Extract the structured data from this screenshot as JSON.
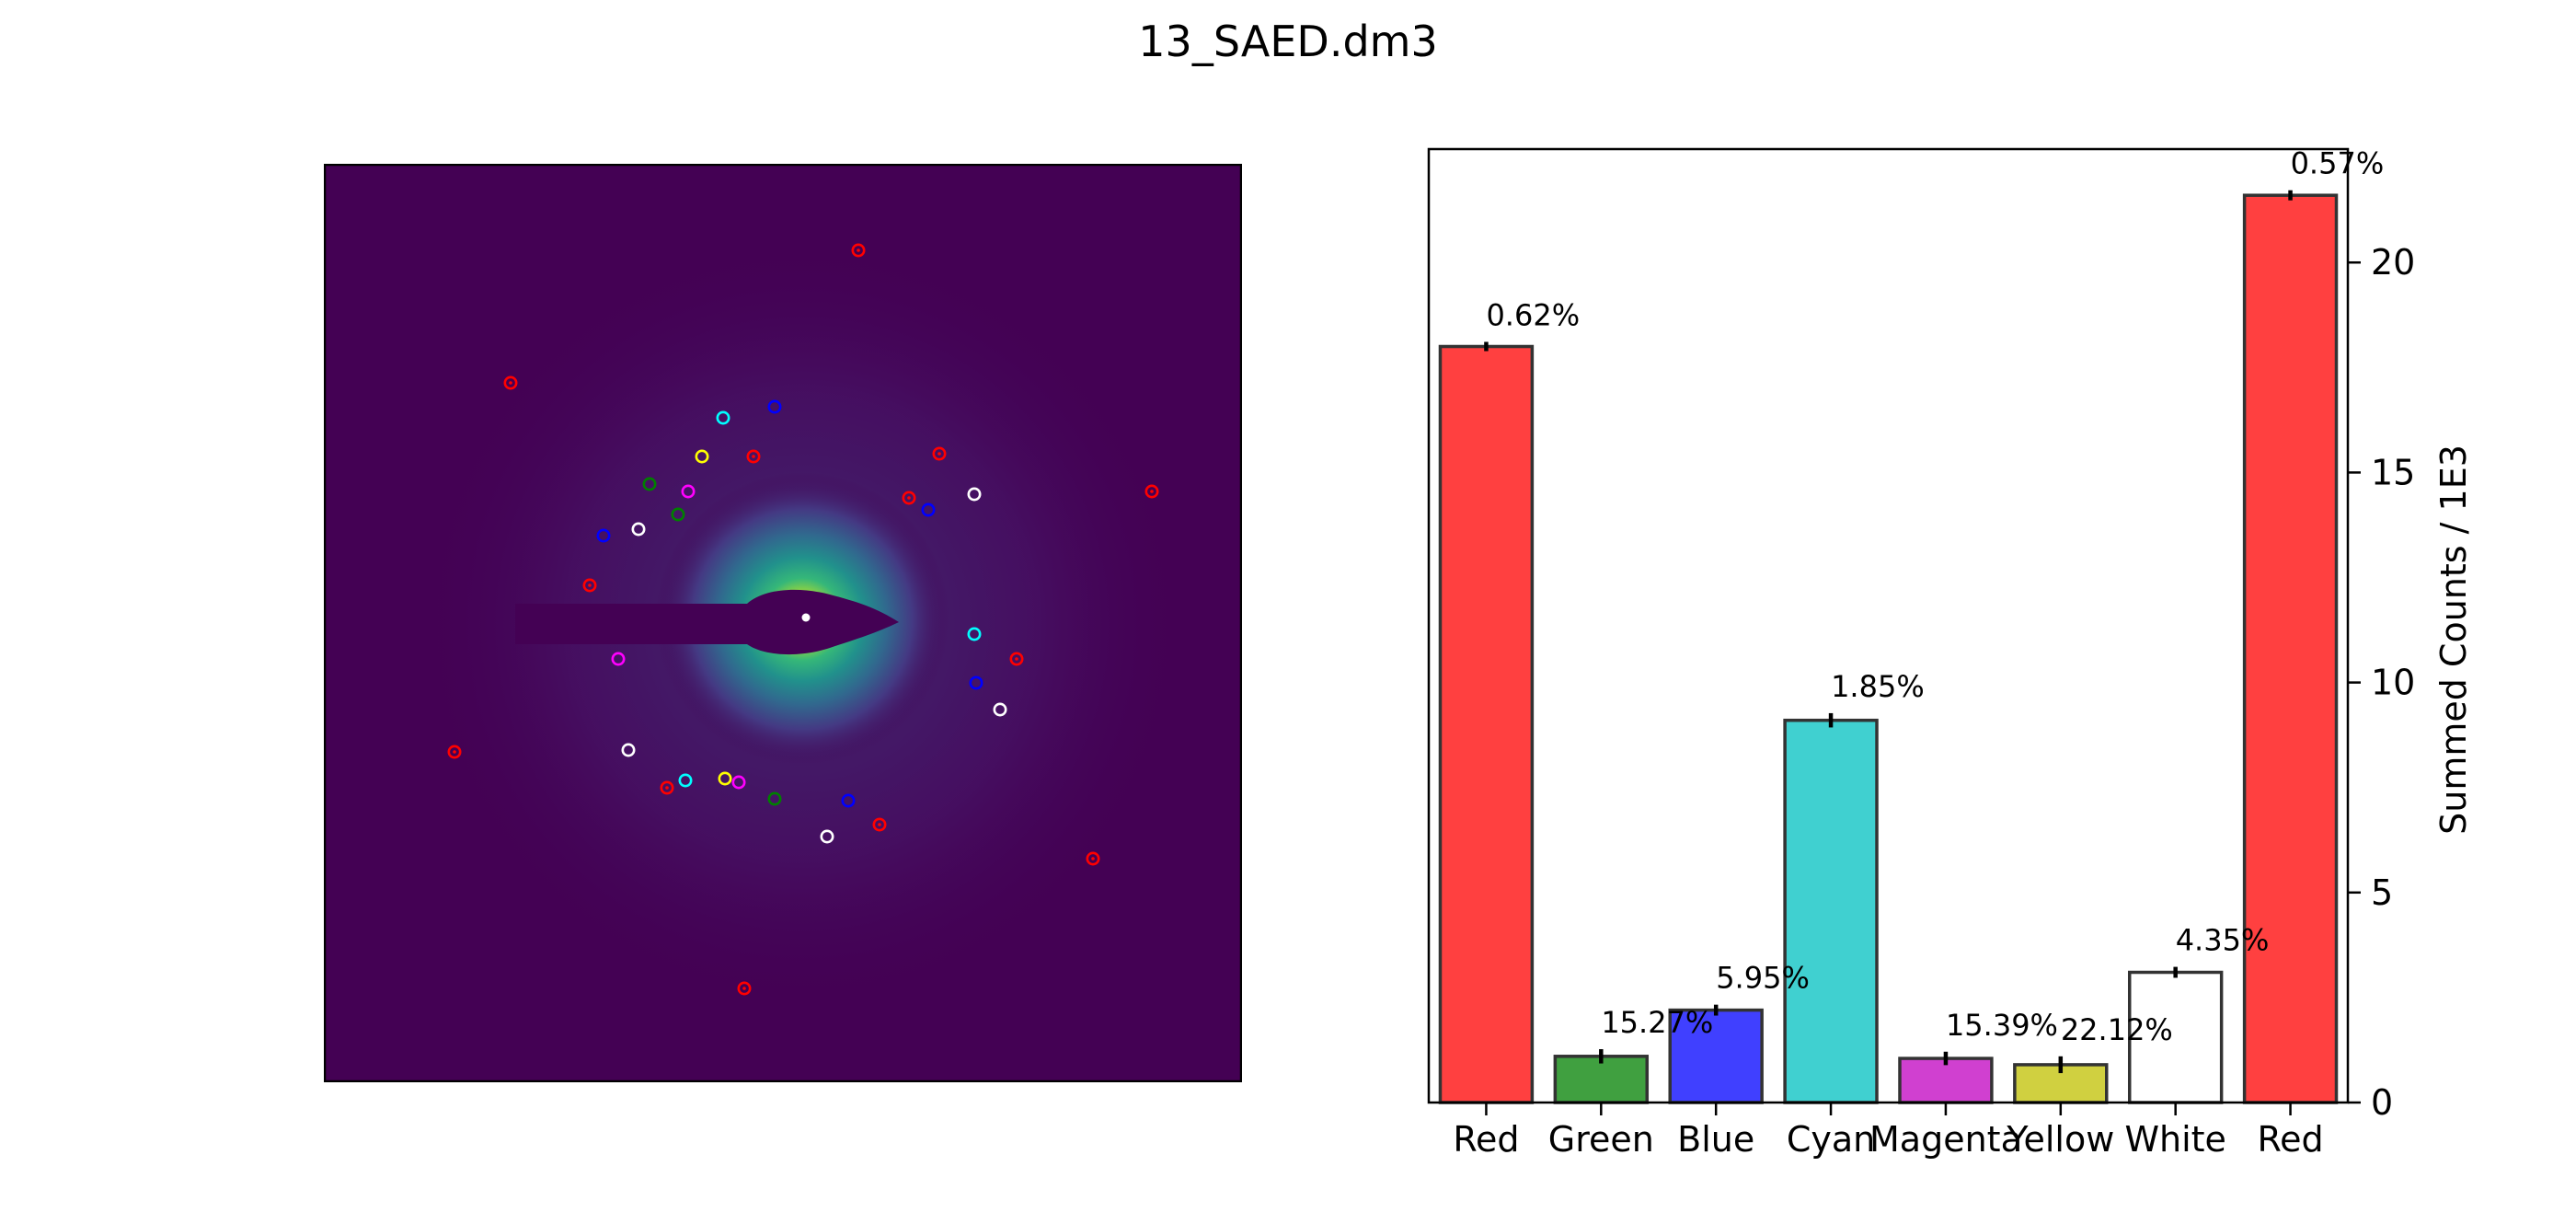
{
  "figure_title": "13_SAED.dm3",
  "image_panel": {
    "background_color": "#440154",
    "direct_beam_color": "#fde725",
    "spot_colors": [
      "red",
      "green",
      "blue",
      "cyan",
      "magenta",
      "yellow",
      "white"
    ]
  },
  "chart_data": {
    "type": "bar",
    "categories": [
      "Red",
      "Green",
      "Blue",
      "Cyan",
      "Magenta",
      "Yellow",
      "White",
      "Red"
    ],
    "values": [
      18.0,
      1.1,
      2.2,
      9.1,
      1.05,
      0.9,
      3.1,
      21.6
    ],
    "errors": [
      0.11,
      0.17,
      0.13,
      0.17,
      0.16,
      0.2,
      0.13,
      0.12
    ],
    "annotations": [
      "0.62%",
      "15.27%",
      "5.95%",
      "1.85%",
      "15.39%",
      "22.12%",
      "4.35%",
      "0.57%"
    ],
    "colors": [
      "#ff4040",
      "#40a040",
      "#4040ff",
      "#40d0d0",
      "#d040d0",
      "#d0d040",
      "#ffffff",
      "#ff4040"
    ],
    "ylabel": "Summed Counts / 1E3",
    "yticks": [
      "0",
      "5",
      "10",
      "15",
      "20"
    ],
    "ylim": [
      0,
      22.7
    ],
    "yaxis_side": "right",
    "grid": false
  }
}
